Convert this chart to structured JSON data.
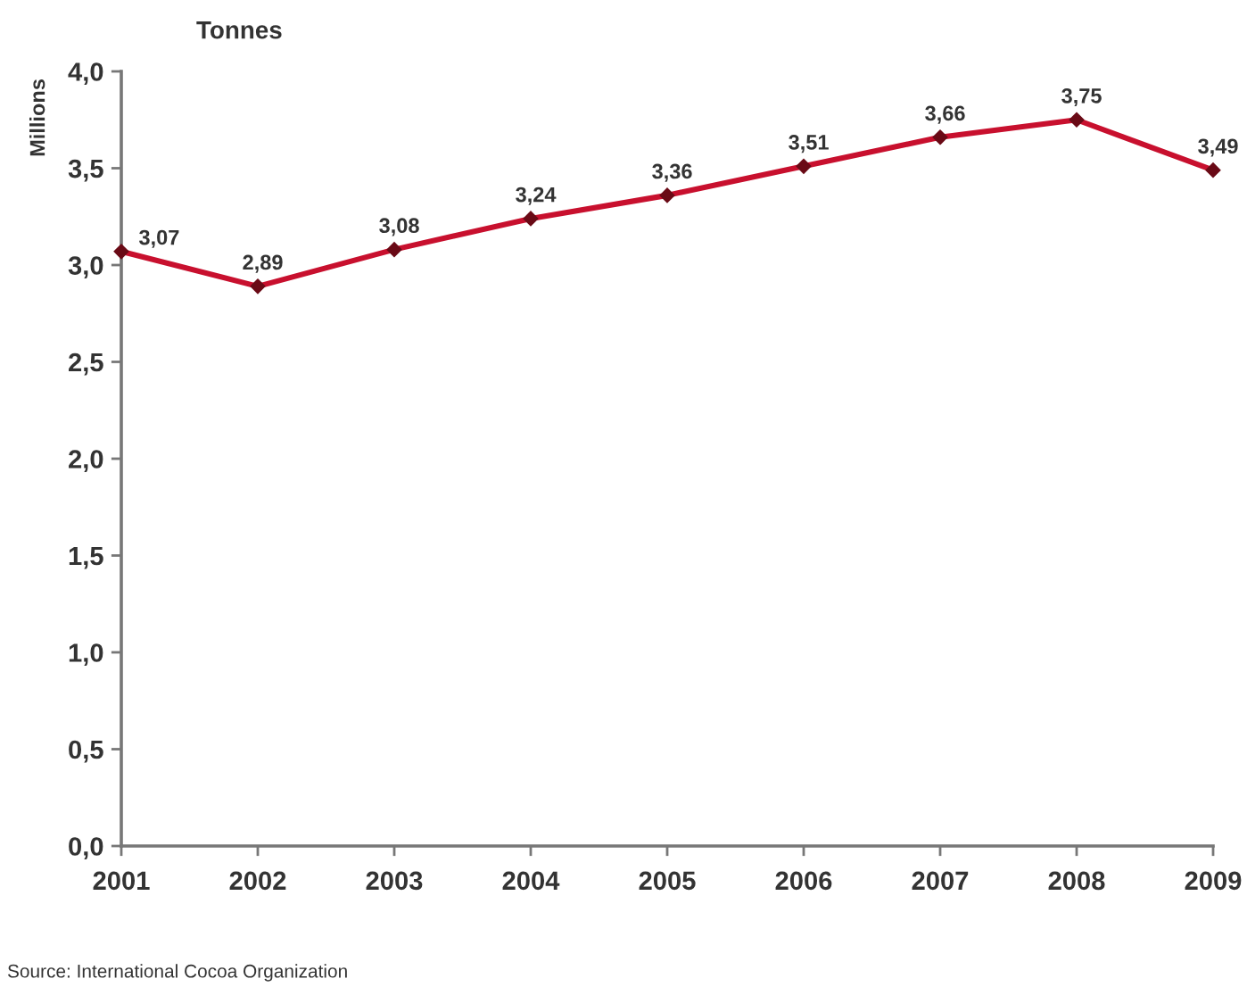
{
  "chart_data": {
    "type": "line",
    "title": "Tonnes",
    "ylabel": "Millions",
    "x": [
      2001,
      2002,
      2003,
      2004,
      2005,
      2006,
      2007,
      2008,
      2009
    ],
    "xlim": [
      2001,
      2009
    ],
    "xticks": [
      2001,
      2002,
      2003,
      2004,
      2005,
      2006,
      2007,
      2008,
      2009
    ],
    "ylim": [
      0,
      4
    ],
    "yticks": [
      {
        "value": 0,
        "label": "0,0"
      },
      {
        "value": 0.5,
        "label": "0,5"
      },
      {
        "value": 1,
        "label": "1,0"
      },
      {
        "value": 1.5,
        "label": "1,5"
      },
      {
        "value": 2,
        "label": "2,0"
      },
      {
        "value": 2.5,
        "label": "2,5"
      },
      {
        "value": 3,
        "label": "3,0"
      },
      {
        "value": 3.5,
        "label": "3,5"
      },
      {
        "value": 4,
        "label": "4,0"
      }
    ],
    "series": [
      {
        "color": "#c8102e",
        "values": [
          3.07,
          2.89,
          3.08,
          3.24,
          3.36,
          3.51,
          3.66,
          3.75,
          3.49
        ],
        "value_labels": [
          "3,07",
          "2,89",
          "3,08",
          "3,24",
          "3,36",
          "3,51",
          "3,66",
          "3,75",
          "3,49"
        ]
      }
    ],
    "marker": "diamond",
    "line_style": "solid",
    "annotations": [
      "Source: International Cocoa Organization"
    ]
  }
}
